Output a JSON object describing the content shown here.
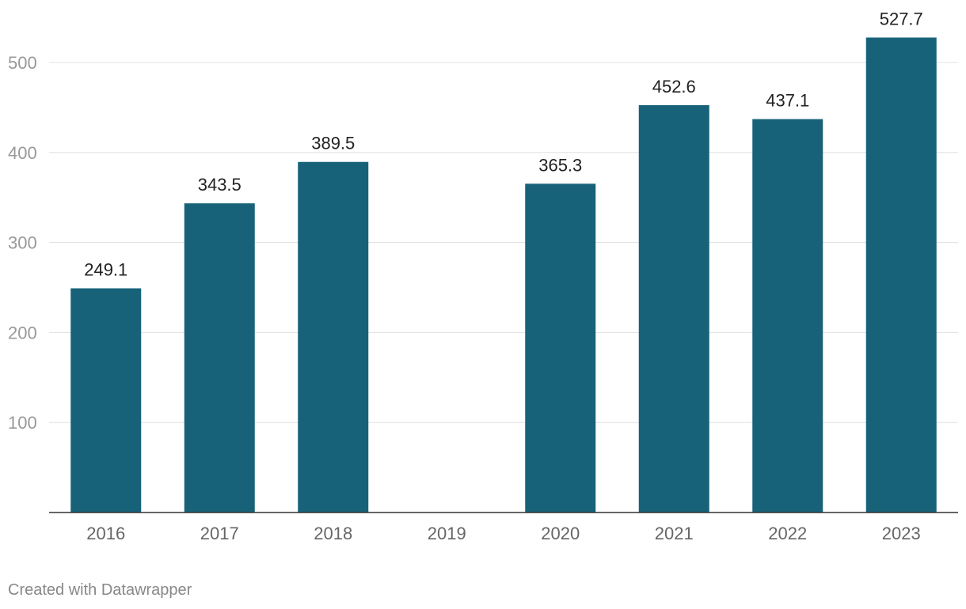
{
  "chart_data": {
    "type": "bar",
    "categories": [
      "2016",
      "2017",
      "2018",
      "2019",
      "2020",
      "2021",
      "2022",
      "2023"
    ],
    "values": [
      249.1,
      343.5,
      389.5,
      null,
      365.3,
      452.6,
      437.1,
      527.7
    ],
    "value_labels": [
      "249.1",
      "343.5",
      "389.5",
      "",
      "365.3",
      "452.6",
      "437.1",
      "527.7"
    ],
    "yticks": [
      100,
      200,
      300,
      400,
      500
    ],
    "ylim": [
      0,
      500
    ],
    "grid": true,
    "bar_color": "#176279",
    "title": "",
    "xlabel": "",
    "ylabel": ""
  },
  "credit": "Created with Datawrapper"
}
